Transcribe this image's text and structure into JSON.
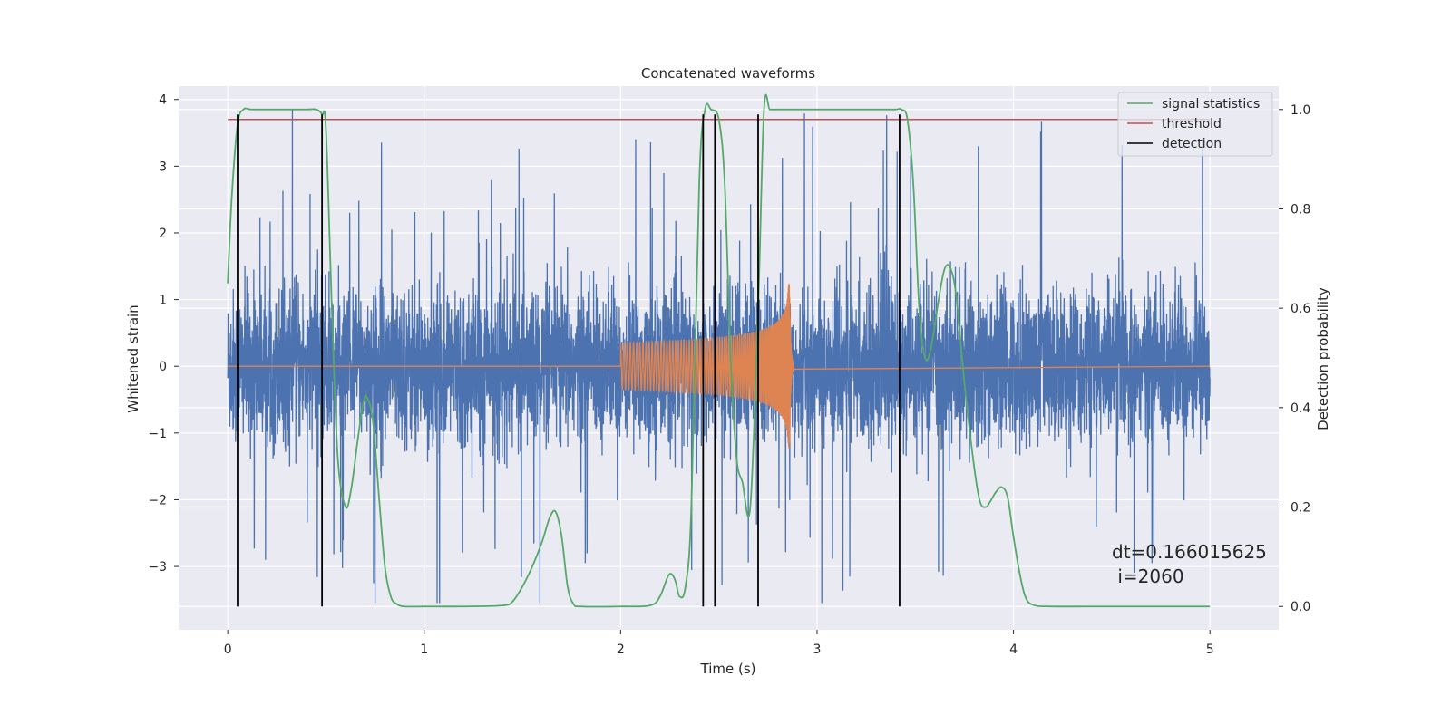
{
  "chart_data": {
    "type": "line",
    "title": "Concatenated waveforms",
    "xlabel": "Time (s)",
    "ylabel": "Whitened strain",
    "y2label": "Detection probability",
    "xlim": [
      -0.25,
      5.35
    ],
    "ylim": [
      -3.95,
      4.2
    ],
    "y2lim": [
      -0.047,
      1.047
    ],
    "xticks": [
      0,
      1,
      2,
      3,
      4,
      5
    ],
    "yticks": [
      -3,
      -2,
      -1,
      0,
      1,
      2,
      3,
      4
    ],
    "y2ticks": [
      0.0,
      0.2,
      0.4,
      0.6,
      0.8,
      1.0
    ],
    "xtick_labels": [
      "0",
      "1",
      "2",
      "3",
      "4",
      "5"
    ],
    "ytick_labels": [
      "−3",
      "−2",
      "−1",
      "0",
      "1",
      "2",
      "3",
      "4"
    ],
    "y2tick_labels": [
      "0.0",
      "0.2",
      "0.4",
      "0.6",
      "0.8",
      "1.0"
    ],
    "grid": true,
    "legend_position": "top-right",
    "series": [
      {
        "kind": "noise",
        "axis": "left",
        "color": "#4c72b0",
        "x_range": [
          0,
          5
        ],
        "typical_amplitude": 0.6,
        "peak_amplitude": 3.9
      },
      {
        "kind": "chirp",
        "axis": "left",
        "color": "#dd8452",
        "x_range": [
          2.0,
          2.88
        ],
        "start_amplitude": 0.35,
        "peak_amplitude": 1.25,
        "peak_time": 2.86
      },
      {
        "name": "signal statistics",
        "axis": "right",
        "color": "#55a868",
        "x": [
          0.0,
          0.02,
          0.05,
          0.08,
          0.12,
          0.2,
          0.3,
          0.4,
          0.45,
          0.48,
          0.5,
          0.53,
          0.56,
          0.6,
          0.63,
          0.66,
          0.69,
          0.71,
          0.74,
          0.77,
          0.8,
          0.83,
          0.86,
          0.9,
          1.0,
          1.2,
          1.4,
          1.45,
          1.5,
          1.55,
          1.6,
          1.64,
          1.67,
          1.7,
          1.73,
          1.76,
          1.8,
          2.0,
          2.15,
          2.2,
          2.24,
          2.26,
          2.28,
          2.3,
          2.33,
          2.36,
          2.4,
          2.43,
          2.46,
          2.5,
          2.53,
          2.56,
          2.59,
          2.62,
          2.66,
          2.7,
          2.73,
          2.76,
          2.8,
          3.0,
          3.2,
          3.35,
          3.4,
          3.43,
          3.46,
          3.49,
          3.52,
          3.55,
          3.58,
          3.62,
          3.65,
          3.68,
          3.71,
          3.75,
          3.8,
          3.83,
          3.86,
          3.88,
          3.91,
          3.94,
          3.97,
          4.0,
          4.03,
          4.06,
          4.1,
          4.2,
          4.5,
          4.8,
          5.0
        ],
        "y": [
          0.65,
          0.82,
          0.97,
          1.0,
          1.0,
          1.0,
          1.0,
          1.0,
          1.0,
          0.99,
          0.96,
          0.6,
          0.3,
          0.2,
          0.24,
          0.33,
          0.41,
          0.42,
          0.37,
          0.22,
          0.08,
          0.02,
          0.005,
          0.0,
          0.0,
          0.0,
          0.002,
          0.01,
          0.04,
          0.08,
          0.13,
          0.18,
          0.19,
          0.14,
          0.04,
          0.005,
          0.0,
          0.0,
          0.002,
          0.02,
          0.06,
          0.065,
          0.05,
          0.02,
          0.04,
          0.2,
          0.85,
          1.0,
          1.0,
          0.98,
          0.85,
          0.5,
          0.3,
          0.25,
          0.2,
          0.6,
          1.0,
          1.0,
          1.0,
          1.0,
          1.0,
          1.0,
          1.0,
          1.0,
          0.98,
          0.85,
          0.6,
          0.5,
          0.52,
          0.62,
          0.68,
          0.68,
          0.62,
          0.45,
          0.28,
          0.21,
          0.2,
          0.21,
          0.23,
          0.24,
          0.22,
          0.14,
          0.07,
          0.02,
          0.003,
          0.0,
          0.0,
          0.0,
          0.0
        ]
      },
      {
        "name": "threshold",
        "axis": "right",
        "color": "#c44e52",
        "x": [
          0,
          5
        ],
        "y": [
          0.98,
          0.98
        ]
      },
      {
        "name": "detection",
        "axis": "right",
        "color": "#000000",
        "x": [
          0.05,
          0.48,
          2.42,
          2.48,
          2.7,
          3.42
        ],
        "y_range": [
          0.0,
          0.99
        ]
      }
    ],
    "legend": [
      "signal statistics",
      "threshold",
      "detection"
    ],
    "annotation": {
      "lines": [
        "dt=0.166015625",
        " i=2060"
      ],
      "x": 4.5,
      "y": -2.85
    }
  }
}
